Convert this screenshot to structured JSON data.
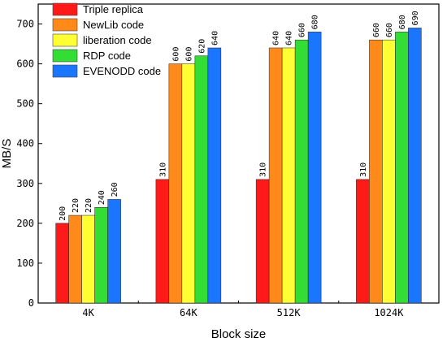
{
  "chart_data": {
    "type": "bar",
    "xlabel": "Block size",
    "ylabel": "MB/S",
    "ylim": [
      0,
      750
    ],
    "yticks": [
      0,
      100,
      200,
      300,
      400,
      500,
      600,
      700
    ],
    "categories": [
      "4K",
      "64K",
      "512K",
      "1024K"
    ],
    "legend_position": "top-left",
    "series": [
      {
        "name": "Triple replica",
        "color": "#ff1a1a",
        "values": [
          200,
          310,
          310,
          310
        ]
      },
      {
        "name": "NewLib code",
        "color": "#ff8a1a",
        "values": [
          220,
          600,
          640,
          660
        ]
      },
      {
        "name": "liberation code",
        "color": "#ffff33",
        "values": [
          220,
          600,
          640,
          660
        ]
      },
      {
        "name": "RDP code",
        "color": "#33dd33",
        "values": [
          240,
          620,
          660,
          680
        ]
      },
      {
        "name": "EVENODD code",
        "color": "#1a75ff",
        "values": [
          260,
          640,
          680,
          690
        ]
      }
    ],
    "data_labels": true
  }
}
